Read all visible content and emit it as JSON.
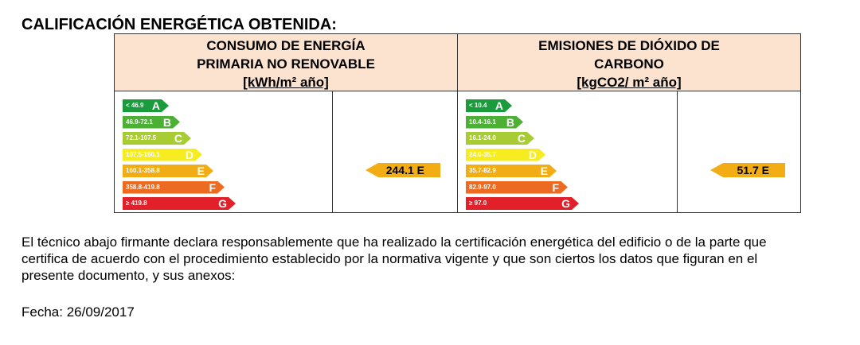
{
  "title": "CALIFICACIÓN ENERGÉTICA OBTENIDA:",
  "energy": {
    "heading_line1": "CONSUMO DE ENERGÍA",
    "heading_line2": "PRIMARIA NO RENOVABLE",
    "unit": "[kWh/m² año]",
    "scale": [
      {
        "range": "< 46.9",
        "letter": "A",
        "color": "#1a9b3c"
      },
      {
        "range": "46.9-72.1",
        "letter": "B",
        "color": "#4cb034"
      },
      {
        "range": "72.1-107.5",
        "letter": "C",
        "color": "#a8cc33"
      },
      {
        "range": "107.5-160.1",
        "letter": "D",
        "color": "#f6ec1f"
      },
      {
        "range": "160.1-358.8",
        "letter": "E",
        "color": "#f2ad14"
      },
      {
        "range": "358.8-419.8",
        "letter": "F",
        "color": "#ed6b21"
      },
      {
        "range": "≥ 419.8",
        "letter": "G",
        "color": "#e2202a"
      }
    ],
    "value": "244.1 E",
    "rating_color": "#f2ad14"
  },
  "emissions": {
    "heading_line1": "EMISIONES DE DIÓXIDO DE",
    "heading_line2": "CARBONO",
    "unit": "[kgCO2/ m² año]",
    "scale": [
      {
        "range": "< 10.4",
        "letter": "A",
        "color": "#1a9b3c"
      },
      {
        "range": "10.4-16.1",
        "letter": "B",
        "color": "#4cb034"
      },
      {
        "range": "16.1-24.0",
        "letter": "C",
        "color": "#a8cc33"
      },
      {
        "range": "24.0-35.7",
        "letter": "D",
        "color": "#f6ec1f"
      },
      {
        "range": "35.7-82.9",
        "letter": "E",
        "color": "#f2ad14"
      },
      {
        "range": "82.9-97.0",
        "letter": "F",
        "color": "#ed6b21"
      },
      {
        "range": "≥ 97.0",
        "letter": "G",
        "color": "#e2202a"
      }
    ],
    "value": "51.7 E",
    "rating_color": "#f2ad14"
  },
  "declaration": {
    "line1": "El técnico abajo firmante declara responsablemente que ha realizado la certificación energética del edificio o de la parte que",
    "line2": "certifica de acuerdo con el procedimiento establecido por la normativa vigente y que son ciertos los datos que figuran en el",
    "line3": "presente documento, y sus anexos:"
  },
  "date": "Fecha: 26/09/2017"
}
